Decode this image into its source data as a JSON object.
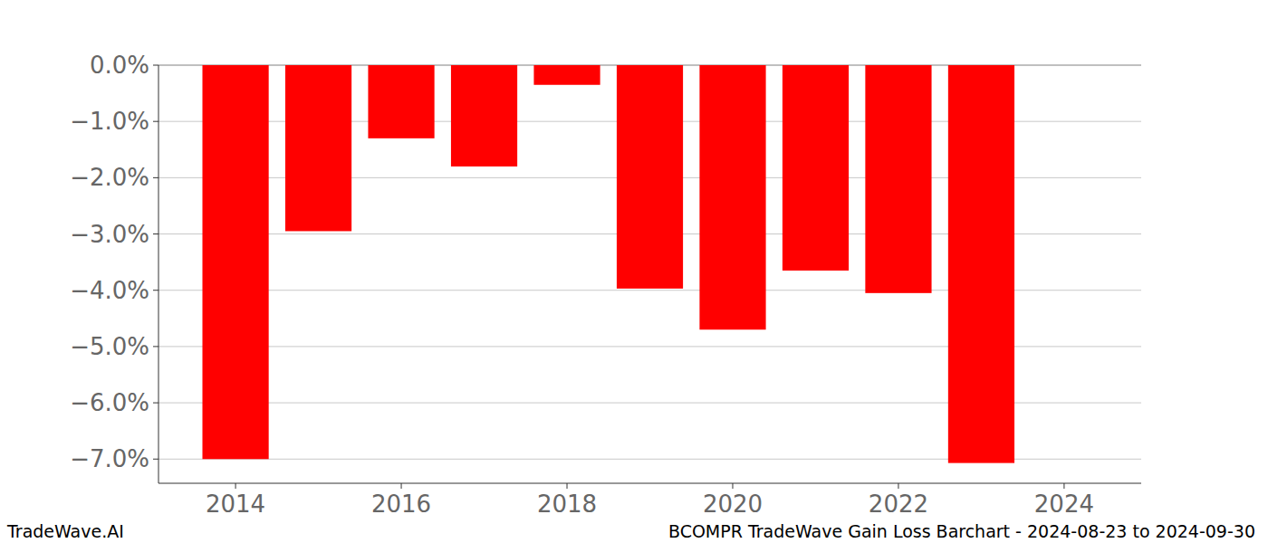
{
  "chart_data": {
    "type": "bar",
    "title": "BCOMPR TradeWave Gain Loss Barchart - 2024-08-23 to 2024-09-30",
    "watermark": "TradeWave.AI",
    "x": [
      2014,
      2015,
      2016,
      2017,
      2018,
      2019,
      2020,
      2021,
      2022,
      2023
    ],
    "values": [
      -7.0,
      -2.95,
      -1.3,
      -1.8,
      -0.35,
      -3.97,
      -4.7,
      -3.65,
      -4.05,
      -7.07
    ],
    "color": "#ff0000",
    "xlim": [
      2013.07,
      2024.93
    ],
    "xticks": [
      2014,
      2016,
      2018,
      2020,
      2022,
      2024
    ],
    "ylim": [
      -7.43,
      0
    ],
    "yticks": [
      {
        "value": 0,
        "label": "0.0%"
      },
      {
        "value": -1,
        "label": "−1.0%"
      },
      {
        "value": -2,
        "label": "−2.0%"
      },
      {
        "value": -3,
        "label": "−3.0%"
      },
      {
        "value": -4,
        "label": "−4.0%"
      },
      {
        "value": -5,
        "label": "−5.0%"
      },
      {
        "value": -6,
        "label": "−6.0%"
      },
      {
        "value": -7,
        "label": "−7.0%"
      }
    ],
    "grid": true
  }
}
